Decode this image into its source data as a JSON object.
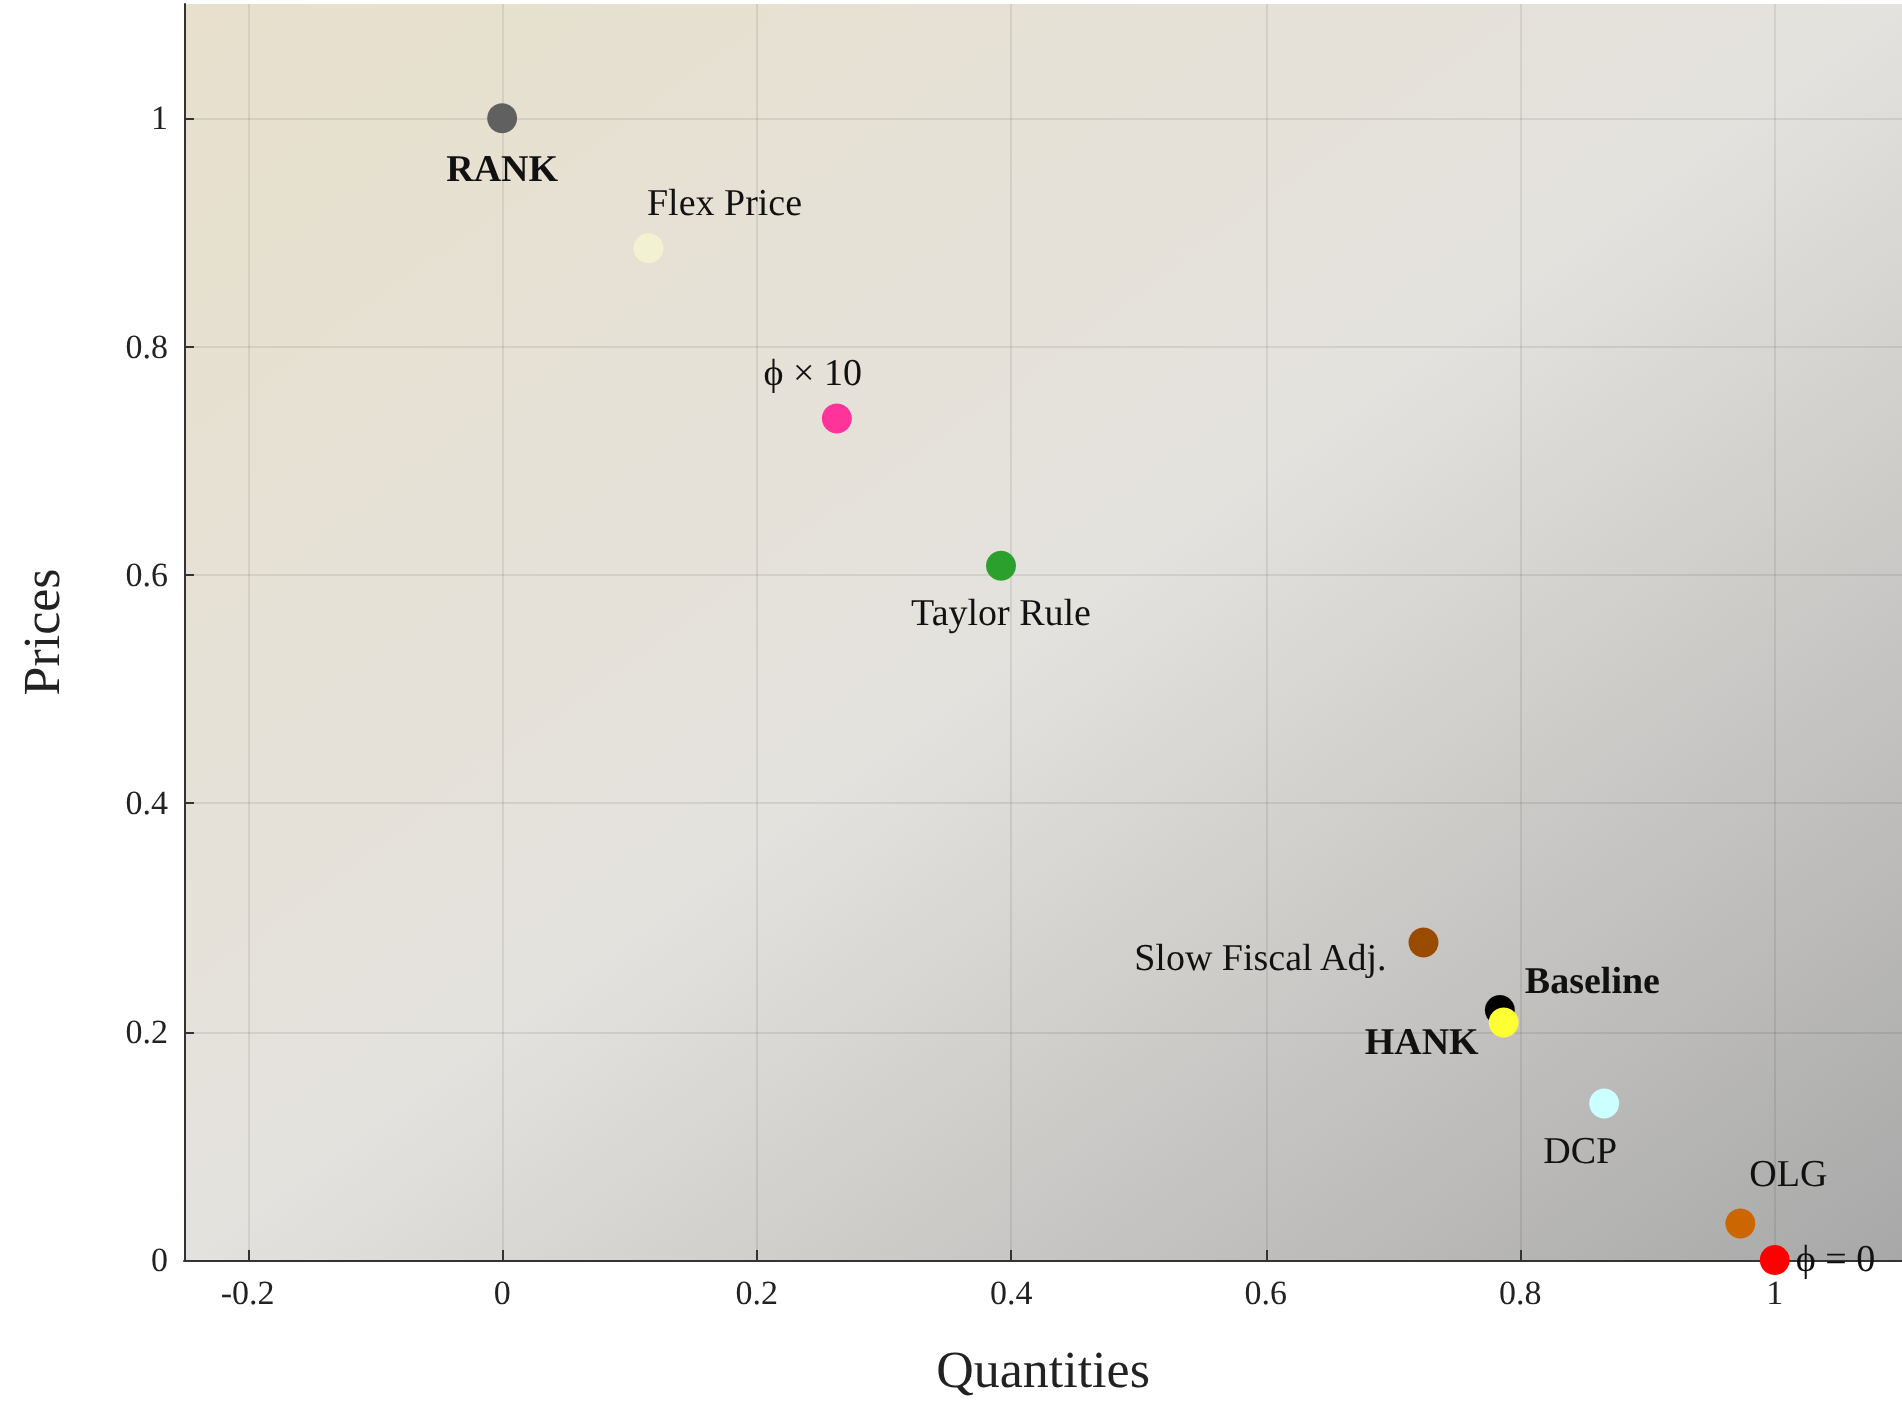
{
  "chart_data": {
    "type": "scatter",
    "xlabel": "Quantities",
    "ylabel": "Prices",
    "xlim": [
      -0.25,
      1.1
    ],
    "ylim": [
      0,
      1.1
    ],
    "xticks": [
      -0.2,
      0,
      0.2,
      0.4,
      0.6,
      0.8,
      1
    ],
    "yticks": [
      0,
      0.2,
      0.4,
      0.6,
      0.8,
      1
    ],
    "grid": true,
    "legend": false,
    "marker": "circle",
    "series": [
      {
        "name": "RANK",
        "color": "#606060",
        "x": [
          0
        ],
        "values": [
          1
        ]
      },
      {
        "name": "Flex Price",
        "color": "#f2f2d2",
        "x": [
          0.115
        ],
        "values": [
          0.886
        ]
      },
      {
        "name": "ϕ × 10",
        "color": "#ff3399",
        "x": [
          0.263
        ],
        "values": [
          0.737
        ]
      },
      {
        "name": "Taylor Rule",
        "color": "#2ca02c",
        "x": [
          0.392
        ],
        "values": [
          0.608
        ]
      },
      {
        "name": "Slow Fiscal Adj.",
        "color": "#994c00",
        "x": [
          0.724
        ],
        "values": [
          0.278
        ]
      },
      {
        "name": "Baseline",
        "color": "#000000",
        "x": [
          0.784
        ],
        "values": [
          0.219
        ]
      },
      {
        "name": "HANK",
        "color": "#ffff33",
        "x": [
          0.787
        ],
        "values": [
          0.208
        ]
      },
      {
        "name": "DCP",
        "color": "#ccffff",
        "x": [
          0.866
        ],
        "values": [
          0.137
        ]
      },
      {
        "name": "OLG",
        "color": "#cc6600",
        "x": [
          0.973
        ],
        "values": [
          0.032
        ]
      },
      {
        "name": "ϕ = 0",
        "color": "#ff0000",
        "x": [
          1.0
        ],
        "values": [
          0
        ]
      }
    ]
  }
}
